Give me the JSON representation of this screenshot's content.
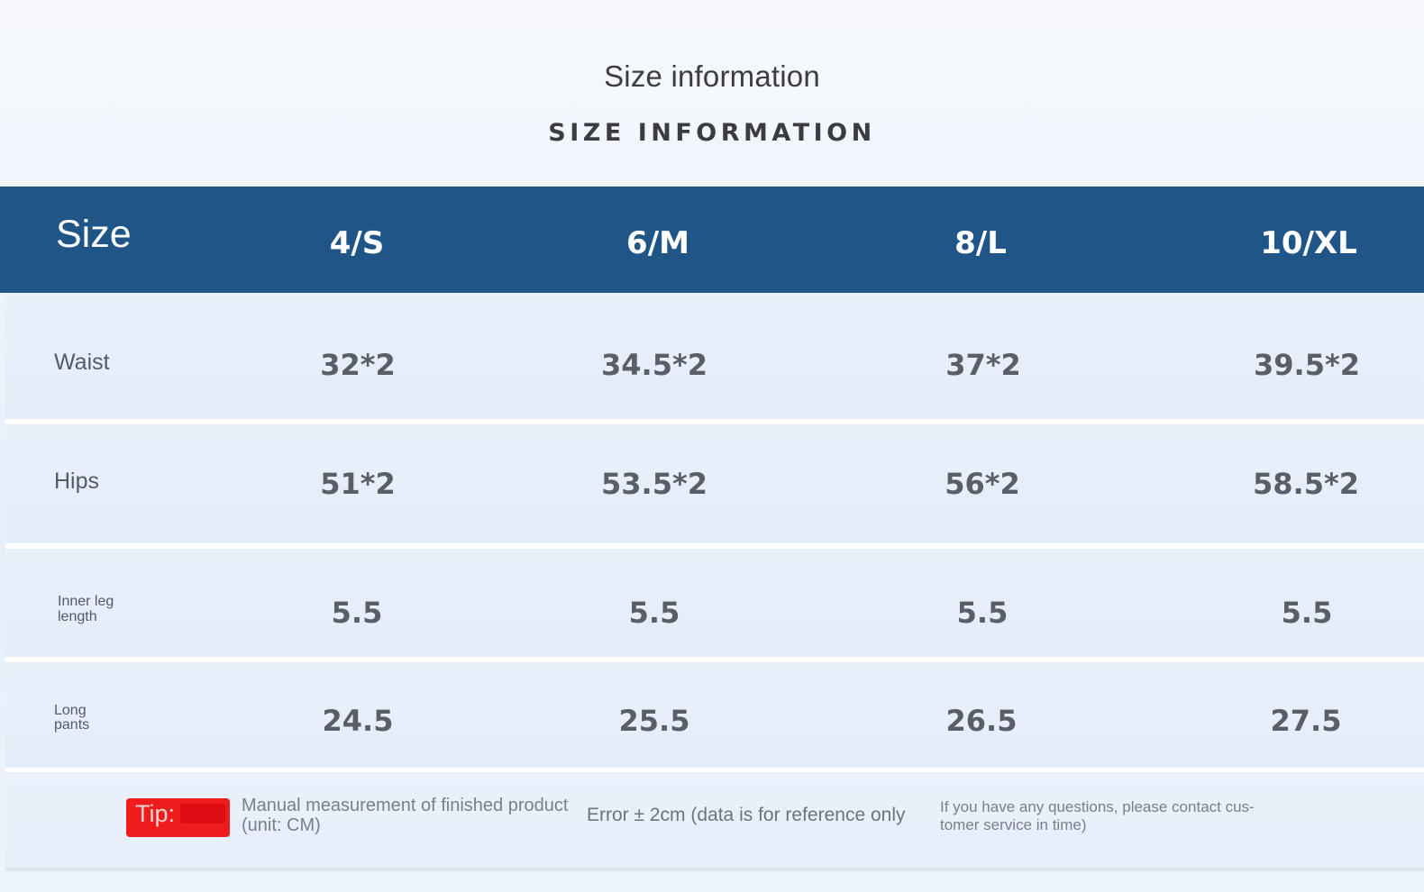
{
  "heading": {
    "title": "Size information",
    "subtitle": "SIZE INFORMATION"
  },
  "table": {
    "header_label": "Size",
    "sizes": [
      "4/S",
      "6/M",
      "8/L",
      "10/XL"
    ],
    "rows": [
      {
        "label": "Waist",
        "values": [
          "32*2",
          "34.5*2",
          "37*2",
          "39.5*2"
        ]
      },
      {
        "label": "Hips",
        "values": [
          "51*2",
          "53.5*2",
          "56*2",
          "58.5*2"
        ]
      },
      {
        "label_line1": "Inner leg",
        "label_line2": "length",
        "values": [
          "5.5",
          "5.5",
          "5.5",
          "5.5"
        ]
      },
      {
        "label_line1": "Long",
        "label_line2": "pants",
        "values": [
          "24.5",
          "25.5",
          "26.5",
          "27.5"
        ]
      }
    ]
  },
  "footer": {
    "tip_label": "Tip:",
    "measurement_line1": "Manual measurement of finished product",
    "measurement_line2": "(unit: CM)",
    "error_note": "Error ± 2cm (data is for reference only",
    "contact_line1": "If you have any questions, please contact cus-",
    "contact_line2": "tomer service in time)"
  },
  "colors": {
    "header_bg": "#1f5587",
    "tip_bg": "#ee1c1c"
  }
}
